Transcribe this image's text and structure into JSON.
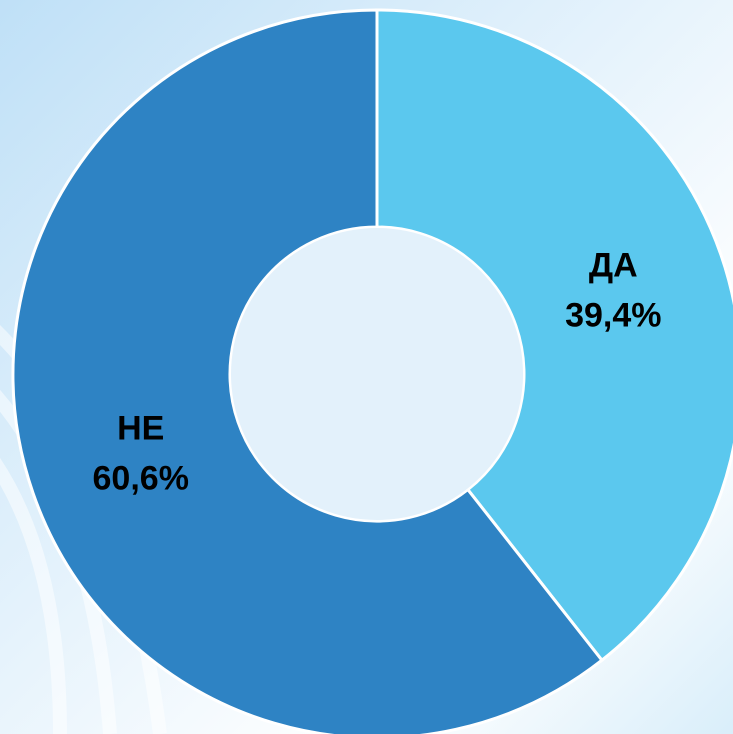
{
  "chart_data": {
    "type": "donut",
    "categories": [
      "ДА",
      "НЕ"
    ],
    "values": [
      39.4,
      60.6
    ],
    "value_labels": [
      "39,4%",
      "60,6%"
    ],
    "colors": [
      "#5bc8ee",
      "#2e83c4"
    ]
  }
}
